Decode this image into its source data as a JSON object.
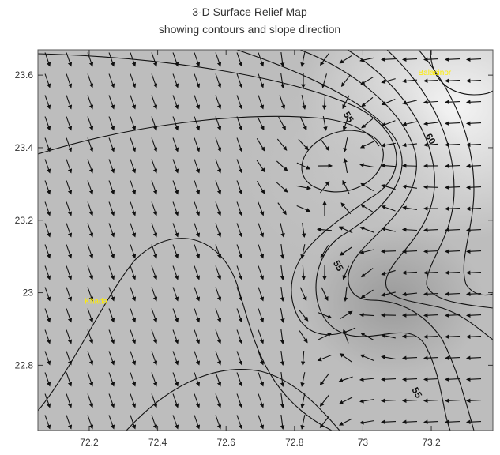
{
  "chart_data": {
    "type": "vector-field",
    "title": "3-D Surface Relief Map",
    "subtitle": "showing contours and slope direction",
    "xlim": [
      72.05,
      73.38
    ],
    "ylim": [
      22.62,
      23.67
    ],
    "xticks": [
      72.2,
      72.4,
      72.6,
      72.8,
      73,
      73.2
    ],
    "yticks": [
      22.8,
      23,
      23.2,
      23.4,
      23.6
    ],
    "places": [
      {
        "name": "Khada",
        "x": 72.22,
        "y": 22.97
      },
      {
        "name": "Balasinor",
        "x": 73.21,
        "y": 23.6
      }
    ],
    "contour_labels": [
      {
        "value": 55,
        "x": 72.95,
        "y": 23.48
      },
      {
        "value": 60,
        "x": 73.19,
        "y": 23.42
      },
      {
        "value": 55,
        "x": 72.92,
        "y": 23.07
      },
      {
        "value": 55,
        "x": 73.15,
        "y": 22.72
      }
    ]
  }
}
